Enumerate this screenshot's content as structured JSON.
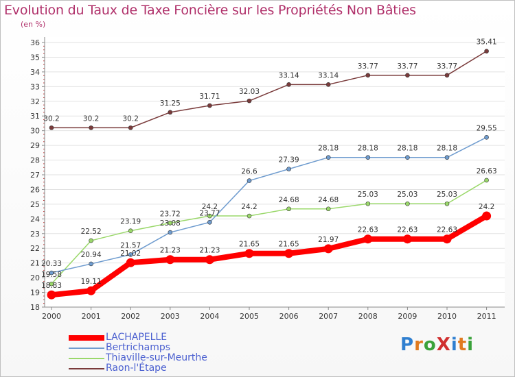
{
  "title": "Evolution du Taux de Taxe Foncière sur les Propriétés Non Bâties",
  "subtitle": "(en %)",
  "logo": {
    "text": "ProXiti",
    "letter_colors": [
      "#2f7fd0",
      "#e07a1f",
      "#3aa23a",
      "#d02f2f",
      "#2f7fd0",
      "#e07a1f",
      "#3aa23a"
    ]
  },
  "chart_data": {
    "type": "line",
    "x": [
      "2000",
      "2001",
      "2002",
      "2003",
      "2004",
      "2005",
      "2006",
      "2007",
      "2008",
      "2009",
      "2010",
      "2011"
    ],
    "ylim": [
      18,
      36
    ],
    "yticks": [
      18,
      19,
      20,
      21,
      22,
      23,
      24,
      25,
      26,
      27,
      28,
      29,
      30,
      31,
      32,
      33,
      34,
      35,
      36
    ],
    "grid": "horizontal",
    "legend_position": "bottom-left",
    "series": [
      {
        "name": "LACHAPELLE",
        "color": "#ff0000",
        "width": 8,
        "marker": 6.5,
        "values": [
          18.83,
          19.11,
          21.02,
          21.23,
          21.23,
          21.65,
          21.65,
          21.97,
          22.63,
          22.63,
          22.63,
          24.2
        ],
        "labels": [
          "18.83",
          "19.11",
          "21.02",
          "21.23",
          "21.23",
          "21.65",
          "21.65",
          "21.97",
          "22.63",
          "22.63",
          "22.63",
          "24.2"
        ]
      },
      {
        "name": "Bertrichamps",
        "color": "#6f9ccf",
        "width": 1.5,
        "marker": 3,
        "values": [
          20.33,
          20.94,
          21.57,
          23.08,
          23.77,
          26.6,
          27.39,
          28.18,
          28.18,
          28.18,
          28.18,
          29.55
        ],
        "labels": [
          "20.33",
          "20.94",
          "21.57",
          "23.08",
          "23.77",
          "26.6",
          "27.39",
          "28.18",
          "28.18",
          "28.18",
          "28.18",
          "29.55"
        ]
      },
      {
        "name": "Thiaville-sur-Meurthe",
        "color": "#9ad86a",
        "width": 1.5,
        "marker": 3,
        "values": [
          19.58,
          22.52,
          23.19,
          23.72,
          24.2,
          24.2,
          24.68,
          24.68,
          25.03,
          25.03,
          25.03,
          26.63
        ],
        "labels": [
          "19.58",
          "22.52",
          "23.19",
          "23.72",
          "24.2",
          "24.2",
          "24.68",
          "24.68",
          "25.03",
          "25.03",
          "25.03",
          "26.63"
        ]
      },
      {
        "name": "Raon-l'Étape",
        "color": "#7a3b3b",
        "width": 1.5,
        "marker": 3,
        "values": [
          30.2,
          30.2,
          30.2,
          31.25,
          31.71,
          32.03,
          33.14,
          33.14,
          33.77,
          33.77,
          33.77,
          35.41
        ],
        "labels": [
          "30.2",
          "30.2",
          "30.2",
          "31.25",
          "31.71",
          "32.03",
          "33.14",
          "33.14",
          "33.77",
          "33.77",
          "33.77",
          "35.41"
        ]
      }
    ]
  }
}
